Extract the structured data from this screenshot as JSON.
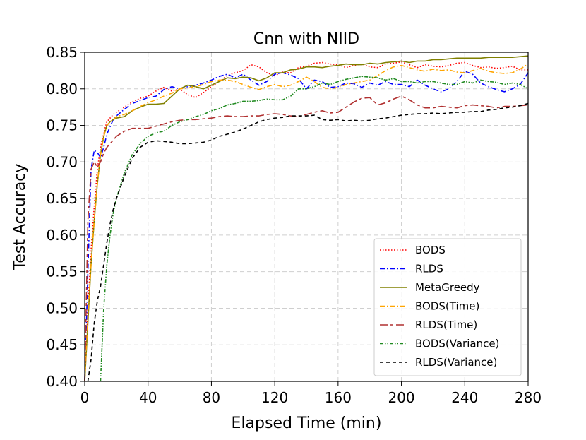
{
  "chart_data": {
    "type": "line",
    "title": "Cnn with NIID",
    "xlabel": "Elapsed Time (min)",
    "ylabel": "Test Accuracy",
    "xlim": [
      0,
      280
    ],
    "ylim": [
      0.4,
      0.85
    ],
    "xticks": [
      0,
      40,
      80,
      120,
      160,
      200,
      240,
      280
    ],
    "yticks": [
      0.4,
      0.45,
      0.5,
      0.55,
      0.6,
      0.65,
      0.7,
      0.75,
      0.8,
      0.85
    ],
    "xtick_labels": [
      "0",
      "40",
      "80",
      "120",
      "160",
      "200",
      "240",
      "280"
    ],
    "ytick_labels": [
      "0.40",
      "0.45",
      "0.50",
      "0.55",
      "0.60",
      "0.65",
      "0.70",
      "0.75",
      "0.80",
      "0.85"
    ],
    "grid": true,
    "legend_position": "lower-right",
    "series": [
      {
        "name": "BODS",
        "color": "#ff0000",
        "dash": "dotted",
        "x": [
          0,
          2,
          4,
          6,
          8,
          10,
          12,
          14,
          16,
          18,
          20,
          25,
          30,
          35,
          40,
          45,
          50,
          55,
          60,
          65,
          70,
          75,
          80,
          85,
          90,
          95,
          100,
          105,
          110,
          115,
          120,
          125,
          130,
          135,
          140,
          145,
          150,
          155,
          160,
          165,
          170,
          175,
          180,
          185,
          190,
          195,
          200,
          205,
          210,
          215,
          220,
          225,
          230,
          235,
          240,
          245,
          250,
          255,
          260,
          265,
          270,
          275,
          280
        ],
        "y": [
          0.4,
          0.5,
          0.58,
          0.64,
          0.69,
          0.72,
          0.74,
          0.755,
          0.76,
          0.765,
          0.768,
          0.775,
          0.782,
          0.787,
          0.79,
          0.797,
          0.802,
          0.797,
          0.8,
          0.792,
          0.788,
          0.795,
          0.803,
          0.81,
          0.818,
          0.822,
          0.825,
          0.833,
          0.83,
          0.822,
          0.818,
          0.823,
          0.822,
          0.829,
          0.831,
          0.835,
          0.836,
          0.834,
          0.833,
          0.829,
          0.832,
          0.834,
          0.83,
          0.829,
          0.834,
          0.835,
          0.837,
          0.833,
          0.829,
          0.833,
          0.831,
          0.83,
          0.832,
          0.835,
          0.836,
          0.832,
          0.829,
          0.83,
          0.828,
          0.829,
          0.831,
          0.826,
          0.826
        ]
      },
      {
        "name": "RLDS",
        "color": "#0000ff",
        "dash": "dashdot",
        "x": [
          0,
          2,
          4,
          6,
          8,
          10,
          12,
          14,
          16,
          18,
          20,
          25,
          30,
          35,
          40,
          45,
          50,
          55,
          60,
          65,
          70,
          75,
          80,
          85,
          90,
          95,
          100,
          105,
          110,
          115,
          120,
          125,
          130,
          135,
          140,
          145,
          150,
          155,
          160,
          165,
          170,
          175,
          180,
          185,
          190,
          195,
          200,
          205,
          210,
          215,
          220,
          225,
          230,
          235,
          240,
          245,
          250,
          255,
          260,
          265,
          270,
          275,
          280
        ],
        "y": [
          0.4,
          0.55,
          0.69,
          0.716,
          0.713,
          0.706,
          0.72,
          0.738,
          0.748,
          0.758,
          0.763,
          0.772,
          0.78,
          0.784,
          0.788,
          0.79,
          0.799,
          0.803,
          0.8,
          0.803,
          0.805,
          0.808,
          0.812,
          0.817,
          0.82,
          0.815,
          0.82,
          0.812,
          0.805,
          0.81,
          0.82,
          0.822,
          0.819,
          0.814,
          0.8,
          0.812,
          0.81,
          0.802,
          0.803,
          0.808,
          0.807,
          0.802,
          0.808,
          0.805,
          0.81,
          0.806,
          0.806,
          0.803,
          0.812,
          0.805,
          0.8,
          0.796,
          0.8,
          0.81,
          0.824,
          0.82,
          0.808,
          0.803,
          0.799,
          0.796,
          0.8,
          0.806,
          0.822
        ]
      },
      {
        "name": "MetaGreedy",
        "color": "#808000",
        "dash": "solid",
        "x": [
          0,
          2,
          4,
          6,
          8,
          10,
          12,
          14,
          16,
          18,
          20,
          25,
          30,
          35,
          40,
          45,
          50,
          55,
          60,
          65,
          70,
          75,
          80,
          85,
          90,
          95,
          100,
          105,
          110,
          115,
          120,
          125,
          130,
          135,
          140,
          145,
          150,
          155,
          160,
          165,
          170,
          175,
          180,
          185,
          190,
          195,
          200,
          205,
          210,
          215,
          220,
          225,
          230,
          235,
          240,
          245,
          250,
          255,
          260,
          265,
          270,
          275,
          280
        ],
        "y": [
          0.4,
          0.48,
          0.56,
          0.62,
          0.67,
          0.71,
          0.735,
          0.75,
          0.755,
          0.758,
          0.76,
          0.762,
          0.77,
          0.775,
          0.779,
          0.779,
          0.78,
          0.79,
          0.8,
          0.805,
          0.803,
          0.8,
          0.805,
          0.81,
          0.815,
          0.814,
          0.816,
          0.815,
          0.811,
          0.815,
          0.822,
          0.822,
          0.826,
          0.827,
          0.83,
          0.83,
          0.829,
          0.831,
          0.832,
          0.834,
          0.833,
          0.833,
          0.835,
          0.834,
          0.836,
          0.837,
          0.838,
          0.836,
          0.838,
          0.838,
          0.84,
          0.84,
          0.841,
          0.842,
          0.842,
          0.842,
          0.842,
          0.843,
          0.843,
          0.843,
          0.843,
          0.844,
          0.845
        ]
      },
      {
        "name": "BODS(Time)",
        "color": "#ffa500",
        "dash": "dashdot",
        "x": [
          0,
          2,
          4,
          6,
          8,
          10,
          12,
          14,
          16,
          18,
          20,
          25,
          30,
          35,
          40,
          45,
          50,
          55,
          60,
          65,
          70,
          75,
          80,
          85,
          90,
          95,
          100,
          105,
          110,
          115,
          120,
          125,
          130,
          135,
          140,
          145,
          150,
          155,
          160,
          165,
          170,
          175,
          180,
          185,
          190,
          195,
          200,
          205,
          210,
          215,
          220,
          225,
          230,
          235,
          240,
          245,
          250,
          255,
          260,
          265,
          270,
          275,
          280
        ],
        "y": [
          0.4,
          0.49,
          0.56,
          0.62,
          0.67,
          0.71,
          0.735,
          0.75,
          0.755,
          0.758,
          0.762,
          0.765,
          0.77,
          0.776,
          0.781,
          0.785,
          0.79,
          0.794,
          0.8,
          0.801,
          0.803,
          0.806,
          0.81,
          0.812,
          0.812,
          0.81,
          0.806,
          0.802,
          0.799,
          0.803,
          0.806,
          0.803,
          0.805,
          0.81,
          0.816,
          0.81,
          0.802,
          0.8,
          0.802,
          0.806,
          0.808,
          0.81,
          0.812,
          0.818,
          0.825,
          0.83,
          0.832,
          0.829,
          0.826,
          0.824,
          0.827,
          0.825,
          0.826,
          0.823,
          0.822,
          0.825,
          0.828,
          0.824,
          0.822,
          0.821,
          0.822,
          0.827,
          0.834
        ]
      },
      {
        "name": "RLDS(Time)",
        "color": "#b03030",
        "dash": "longdash",
        "x": [
          0,
          2,
          4,
          6,
          8,
          10,
          12,
          14,
          16,
          18,
          20,
          25,
          30,
          35,
          40,
          45,
          50,
          55,
          60,
          65,
          70,
          75,
          80,
          85,
          90,
          95,
          100,
          105,
          110,
          115,
          120,
          125,
          130,
          135,
          140,
          145,
          150,
          155,
          160,
          165,
          170,
          175,
          180,
          185,
          190,
          195,
          200,
          205,
          210,
          215,
          220,
          225,
          230,
          235,
          240,
          245,
          250,
          255,
          260,
          265,
          270,
          275,
          280
        ],
        "y": [
          0.4,
          0.62,
          0.69,
          0.7,
          0.693,
          0.7,
          0.712,
          0.72,
          0.725,
          0.73,
          0.735,
          0.742,
          0.746,
          0.746,
          0.746,
          0.749,
          0.752,
          0.755,
          0.757,
          0.758,
          0.758,
          0.759,
          0.76,
          0.762,
          0.763,
          0.762,
          0.762,
          0.763,
          0.763,
          0.765,
          0.766,
          0.765,
          0.763,
          0.762,
          0.765,
          0.768,
          0.77,
          0.767,
          0.768,
          0.775,
          0.782,
          0.787,
          0.788,
          0.778,
          0.781,
          0.786,
          0.79,
          0.785,
          0.778,
          0.774,
          0.774,
          0.776,
          0.775,
          0.774,
          0.777,
          0.778,
          0.777,
          0.776,
          0.774,
          0.776,
          0.776,
          0.777,
          0.778
        ]
      },
      {
        "name": "BODS(Variance)",
        "color": "#228b22",
        "dash": "dashdotdot",
        "x": [
          10,
          12,
          14,
          16,
          18,
          20,
          25,
          30,
          35,
          40,
          45,
          50,
          55,
          60,
          65,
          70,
          75,
          80,
          85,
          90,
          95,
          100,
          105,
          110,
          115,
          120,
          125,
          130,
          135,
          140,
          145,
          150,
          155,
          160,
          165,
          170,
          175,
          180,
          185,
          190,
          195,
          200,
          205,
          210,
          215,
          220,
          225,
          230,
          235,
          240,
          245,
          250,
          255,
          260,
          265,
          270,
          275,
          280
        ],
        "y": [
          0.4,
          0.5,
          0.56,
          0.6,
          0.63,
          0.65,
          0.685,
          0.71,
          0.725,
          0.735,
          0.74,
          0.742,
          0.75,
          0.755,
          0.758,
          0.762,
          0.765,
          0.77,
          0.773,
          0.778,
          0.78,
          0.783,
          0.783,
          0.784,
          0.786,
          0.785,
          0.785,
          0.79,
          0.8,
          0.8,
          0.803,
          0.808,
          0.806,
          0.81,
          0.813,
          0.815,
          0.817,
          0.816,
          0.815,
          0.812,
          0.814,
          0.81,
          0.81,
          0.808,
          0.81,
          0.81,
          0.808,
          0.806,
          0.806,
          0.81,
          0.808,
          0.812,
          0.81,
          0.809,
          0.806,
          0.808,
          0.806,
          0.8
        ]
      },
      {
        "name": "RLDS(Variance)",
        "color": "#000000",
        "dash": "dashed",
        "x": [
          2,
          4,
          6,
          8,
          10,
          12,
          14,
          16,
          18,
          20,
          25,
          30,
          35,
          40,
          45,
          50,
          55,
          60,
          65,
          70,
          75,
          80,
          85,
          90,
          95,
          100,
          105,
          110,
          115,
          120,
          125,
          130,
          135,
          140,
          145,
          150,
          155,
          160,
          165,
          170,
          175,
          180,
          185,
          190,
          195,
          200,
          205,
          210,
          215,
          220,
          225,
          230,
          235,
          240,
          245,
          250,
          255,
          260,
          265,
          270,
          275,
          280
        ],
        "y": [
          0.4,
          0.43,
          0.48,
          0.51,
          0.53,
          0.56,
          0.59,
          0.615,
          0.635,
          0.65,
          0.68,
          0.705,
          0.72,
          0.727,
          0.729,
          0.728,
          0.727,
          0.725,
          0.725,
          0.726,
          0.727,
          0.73,
          0.735,
          0.738,
          0.741,
          0.745,
          0.75,
          0.755,
          0.758,
          0.76,
          0.761,
          0.763,
          0.763,
          0.763,
          0.764,
          0.758,
          0.757,
          0.758,
          0.756,
          0.757,
          0.756,
          0.757,
          0.759,
          0.76,
          0.762,
          0.764,
          0.765,
          0.766,
          0.766,
          0.767,
          0.766,
          0.767,
          0.768,
          0.768,
          0.769,
          0.769,
          0.771,
          0.772,
          0.774,
          0.775,
          0.777,
          0.78
        ]
      }
    ]
  }
}
